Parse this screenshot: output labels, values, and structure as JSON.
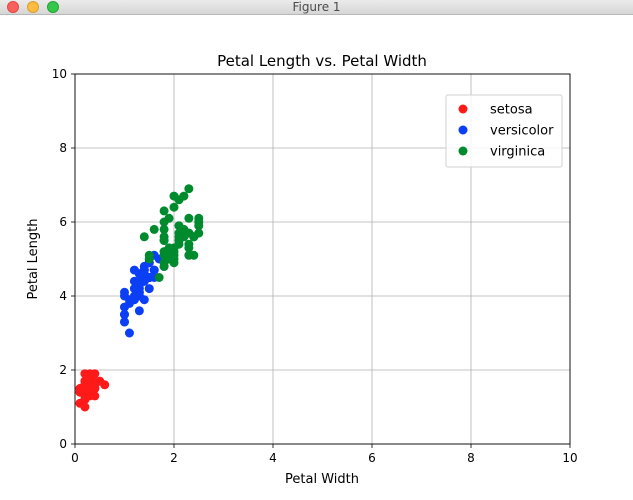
{
  "window": {
    "title": "Figure 1",
    "buttons": {
      "close": "close-button",
      "minimize": "minimize-button",
      "zoom": "zoom-button"
    }
  },
  "chart_data": {
    "type": "scatter",
    "title": "Petal Length vs. Petal Width",
    "xlabel": "Petal Width",
    "ylabel": "Petal Length",
    "xlim": [
      0,
      10
    ],
    "ylim": [
      0,
      10
    ],
    "xticks": [
      "0",
      "2",
      "4",
      "6",
      "8",
      "10"
    ],
    "yticks": [
      "0",
      "2",
      "4",
      "6",
      "8",
      "10"
    ],
    "grid": true,
    "legend_position": "top-right",
    "series": [
      {
        "name": "setosa",
        "color": "#ff1a1a",
        "points": [
          [
            0.2,
            1.4
          ],
          [
            0.2,
            1.3
          ],
          [
            0.2,
            1.5
          ],
          [
            0.4,
            1.7
          ],
          [
            0.3,
            1.4
          ],
          [
            0.2,
            1.5
          ],
          [
            0.1,
            1.5
          ],
          [
            0.2,
            1.6
          ],
          [
            0.1,
            1.4
          ],
          [
            0.1,
            1.1
          ],
          [
            0.2,
            1.2
          ],
          [
            0.4,
            1.5
          ],
          [
            0.4,
            1.3
          ],
          [
            0.3,
            1.7
          ],
          [
            0.3,
            1.5
          ],
          [
            0.2,
            1.7
          ],
          [
            0.5,
            1.7
          ],
          [
            0.2,
            1.9
          ],
          [
            0.4,
            1.6
          ],
          [
            0.2,
            1.0
          ],
          [
            0.6,
            1.6
          ],
          [
            0.3,
            1.3
          ],
          [
            0.3,
            1.9
          ],
          [
            0.4,
            1.9
          ],
          [
            0.2,
            1.6
          ],
          [
            0.2,
            1.5
          ],
          [
            0.3,
            1.4
          ],
          [
            0.1,
            1.5
          ],
          [
            0.4,
            1.5
          ]
        ]
      },
      {
        "name": "versicolor",
        "color": "#0b3ff5",
        "points": [
          [
            1.4,
            4.7
          ],
          [
            1.5,
            4.5
          ],
          [
            1.5,
            4.9
          ],
          [
            1.3,
            4.0
          ],
          [
            1.3,
            4.6
          ],
          [
            1.6,
            4.7
          ],
          [
            1.0,
            3.3
          ],
          [
            1.3,
            4.6
          ],
          [
            1.4,
            3.9
          ],
          [
            1.0,
            3.5
          ],
          [
            1.5,
            4.2
          ],
          [
            1.0,
            4.0
          ],
          [
            1.4,
            4.7
          ],
          [
            1.3,
            3.6
          ],
          [
            1.4,
            4.4
          ],
          [
            1.5,
            4.5
          ],
          [
            1.0,
            4.1
          ],
          [
            1.5,
            4.5
          ],
          [
            1.1,
            3.9
          ],
          [
            1.8,
            4.8
          ],
          [
            1.3,
            4.0
          ],
          [
            1.5,
            4.9
          ],
          [
            1.2,
            4.7
          ],
          [
            1.3,
            4.3
          ],
          [
            1.4,
            4.4
          ],
          [
            1.4,
            4.8
          ],
          [
            1.7,
            5.0
          ],
          [
            1.5,
            4.5
          ],
          [
            1.0,
            3.5
          ],
          [
            1.1,
            3.8
          ],
          [
            1.0,
            3.7
          ],
          [
            1.2,
            3.9
          ],
          [
            1.6,
            5.1
          ],
          [
            1.5,
            4.5
          ],
          [
            1.6,
            4.5
          ],
          [
            1.3,
            4.4
          ],
          [
            1.3,
            4.1
          ],
          [
            1.2,
            4.4
          ],
          [
            1.4,
            4.6
          ],
          [
            1.2,
            4.0
          ],
          [
            1.0,
            3.3
          ],
          [
            1.3,
            4.2
          ],
          [
            1.2,
            4.2
          ],
          [
            1.3,
            4.3
          ],
          [
            1.1,
            3.0
          ],
          [
            1.3,
            4.1
          ],
          [
            1.6,
            4.7
          ]
        ]
      },
      {
        "name": "virginica",
        "color": "#008a2e",
        "points": [
          [
            2.5,
            6.0
          ],
          [
            1.9,
            5.1
          ],
          [
            2.1,
            5.9
          ],
          [
            1.8,
            5.6
          ],
          [
            2.2,
            5.8
          ],
          [
            2.1,
            6.6
          ],
          [
            1.7,
            4.5
          ],
          [
            1.8,
            6.3
          ],
          [
            1.8,
            5.8
          ],
          [
            2.5,
            6.1
          ],
          [
            2.0,
            5.1
          ],
          [
            1.9,
            5.3
          ],
          [
            2.1,
            5.5
          ],
          [
            2.0,
            5.0
          ],
          [
            2.4,
            5.1
          ],
          [
            2.3,
            5.3
          ],
          [
            1.8,
            5.5
          ],
          [
            2.2,
            6.7
          ],
          [
            2.3,
            6.9
          ],
          [
            1.5,
            5.0
          ],
          [
            2.3,
            5.7
          ],
          [
            2.0,
            4.9
          ],
          [
            2.0,
            6.7
          ],
          [
            1.8,
            4.9
          ],
          [
            2.1,
            5.7
          ],
          [
            1.8,
            6.0
          ],
          [
            1.8,
            4.8
          ],
          [
            2.1,
            5.6
          ],
          [
            1.6,
            5.8
          ],
          [
            1.9,
            6.1
          ],
          [
            2.0,
            6.4
          ],
          [
            2.2,
            5.6
          ],
          [
            1.5,
            5.1
          ],
          [
            1.4,
            5.6
          ],
          [
            2.3,
            6.1
          ],
          [
            2.4,
            5.6
          ],
          [
            1.8,
            5.5
          ],
          [
            2.1,
            5.4
          ],
          [
            2.4,
            5.6
          ],
          [
            2.3,
            5.1
          ],
          [
            2.5,
            5.9
          ],
          [
            2.3,
            5.7
          ],
          [
            1.9,
            5.2
          ],
          [
            2.0,
            5.2
          ],
          [
            2.3,
            5.4
          ],
          [
            1.8,
            5.1
          ],
          [
            2.5,
            5.7
          ],
          [
            1.9,
            5.0
          ],
          [
            1.8,
            5.2
          ],
          [
            2.0,
            5.3
          ]
        ]
      }
    ]
  }
}
